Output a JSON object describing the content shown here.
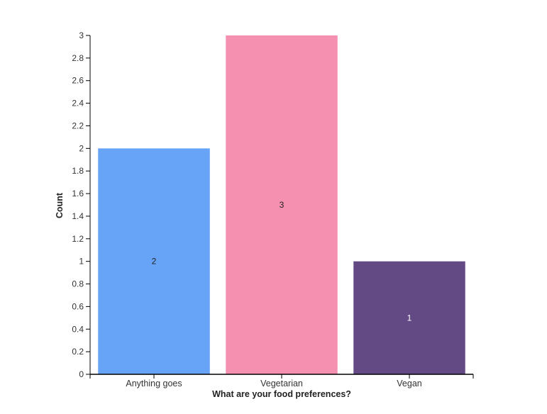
{
  "chart_data": {
    "type": "bar",
    "categories": [
      "Anything goes",
      "Vegetarian",
      "Vegan"
    ],
    "values": [
      2,
      3,
      1
    ],
    "data_labels": [
      "2",
      "3",
      "1"
    ],
    "colors": [
      "#67a4f7",
      "#f590b0",
      "#644a85"
    ],
    "label_colors": [
      "#222222",
      "#222222",
      "#ffffff"
    ],
    "title": "",
    "xlabel": "What are your food preferences?",
    "ylabel": "Count",
    "ylim": [
      0,
      3
    ],
    "yticks": [
      "0",
      "0.2",
      "0.4",
      "0.6",
      "0.8",
      "1",
      "1.2",
      "1.4",
      "1.6",
      "1.8",
      "2",
      "2.2",
      "2.4",
      "2.6",
      "2.8",
      "3"
    ],
    "grid": false,
    "legend": "none"
  }
}
